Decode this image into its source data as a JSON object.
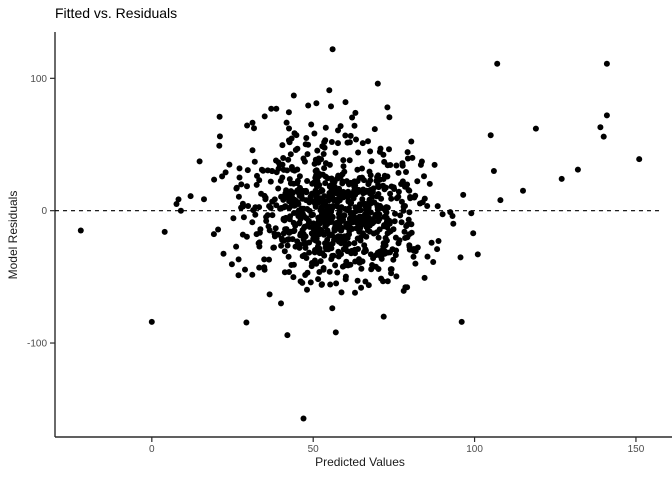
{
  "chart_data": {
    "type": "scatter",
    "title": "Fitted vs. Residuals",
    "xlabel": "Predicted Values",
    "ylabel": "Model Residuals",
    "xlim": [
      -30,
      159
    ],
    "ylim": [
      -171,
      135
    ],
    "x_ticks": [
      0,
      50,
      100,
      150
    ],
    "y_ticks": [
      -100,
      0,
      100
    ],
    "grid": "off",
    "legend": "none",
    "reference_line": {
      "y": 0,
      "style": "dashed",
      "color": "#000000"
    },
    "style": {
      "point_color": "#000000",
      "point_radius": 3,
      "axis_color": "#2b2b2b",
      "tick_label_color": "#4d4d4d",
      "background": "#ffffff"
    },
    "visible_outlier_points": [
      [
        56,
        122
      ],
      [
        107,
        111
      ],
      [
        141,
        111
      ],
      [
        141,
        72
      ],
      [
        139,
        63
      ],
      [
        140,
        56
      ],
      [
        151,
        39
      ],
      [
        105,
        57
      ],
      [
        119,
        62
      ],
      [
        132,
        31
      ],
      [
        127,
        24
      ],
      [
        115,
        15
      ],
      [
        108,
        8
      ],
      [
        106,
        30
      ],
      [
        99,
        -2
      ],
      [
        101,
        -33
      ],
      [
        -22,
        -15
      ],
      [
        4,
        -16
      ],
      [
        9,
        0
      ],
      [
        12,
        11
      ],
      [
        0,
        -84
      ],
      [
        47,
        -157
      ],
      [
        42,
        -94
      ],
      [
        57,
        -92
      ],
      [
        96,
        -84
      ],
      [
        44,
        87
      ],
      [
        55,
        91
      ],
      [
        70,
        96
      ],
      [
        60,
        82
      ],
      [
        73,
        78
      ],
      [
        21,
        71
      ],
      [
        37,
        77
      ]
    ],
    "cloud": {
      "description": "dense unlabeled residual cloud, ~900 points centered near x=57, residual=0",
      "seed": 20240,
      "groups": [
        {
          "n": 570,
          "x_mean": 58,
          "x_sd": 13,
          "y_mean": -3,
          "y_sd": 23,
          "x_clip": [
            16,
            100
          ],
          "y_clip": [
            -62,
            58
          ]
        },
        {
          "n": 220,
          "x_mean": 55,
          "x_sd": 17,
          "y_mean": 0,
          "y_sd": 33,
          "x_clip": [
            6,
            100
          ],
          "y_clip": [
            -72,
            72
          ]
        },
        {
          "n": 90,
          "x_mean": 54,
          "x_sd": 21,
          "y_mean": 2,
          "y_sd": 45,
          "x_clip": [
            3,
            101
          ],
          "y_clip": [
            -90,
            93
          ]
        }
      ]
    }
  }
}
